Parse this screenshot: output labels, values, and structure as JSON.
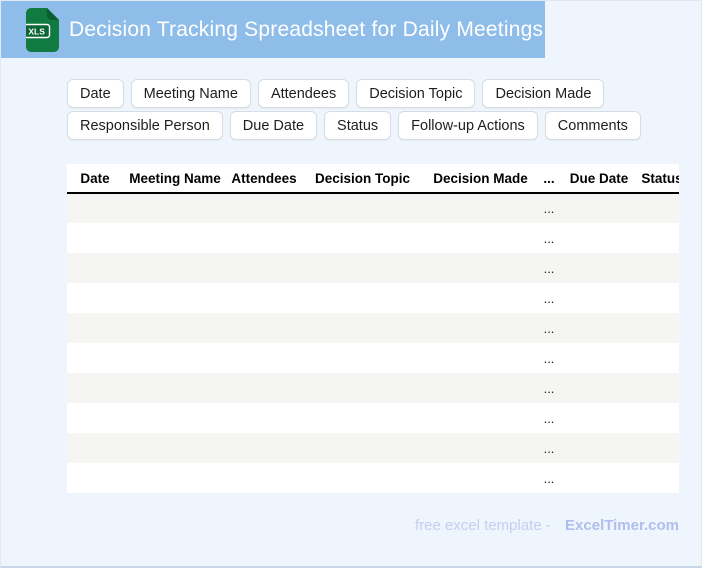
{
  "banner": {
    "title": "Decision Tracking Spreadsheet for Daily Meetings",
    "file_badge": "XLS"
  },
  "tag_rows": [
    [
      "Date",
      "Meeting Name",
      "Attendees",
      "Decision Topic",
      "Decision Made"
    ],
    [
      "Responsible Person",
      "Due Date",
      "Status",
      "Follow-up Actions",
      "Comments"
    ]
  ],
  "table": {
    "columns": [
      "Date",
      "Meeting Name",
      "Attendees",
      "Decision Topic",
      "Decision Made",
      "...",
      "Due Date",
      "Status"
    ],
    "ellipsis_column_index": 5,
    "cell_placeholder": "...",
    "row_count": 10
  },
  "footer": {
    "label": "free excel template -",
    "brand": "ExcelTimer.com"
  },
  "colors": {
    "banner_bg": "#8FBDE9",
    "page_bg": "#EFF5FC",
    "row_stripe": "#F5F5F4",
    "icon_green": "#117A41",
    "icon_green_dark": "#0A5F2F",
    "footer_label": "#C5CEF1",
    "footer_brand": "#AFBEEC"
  }
}
